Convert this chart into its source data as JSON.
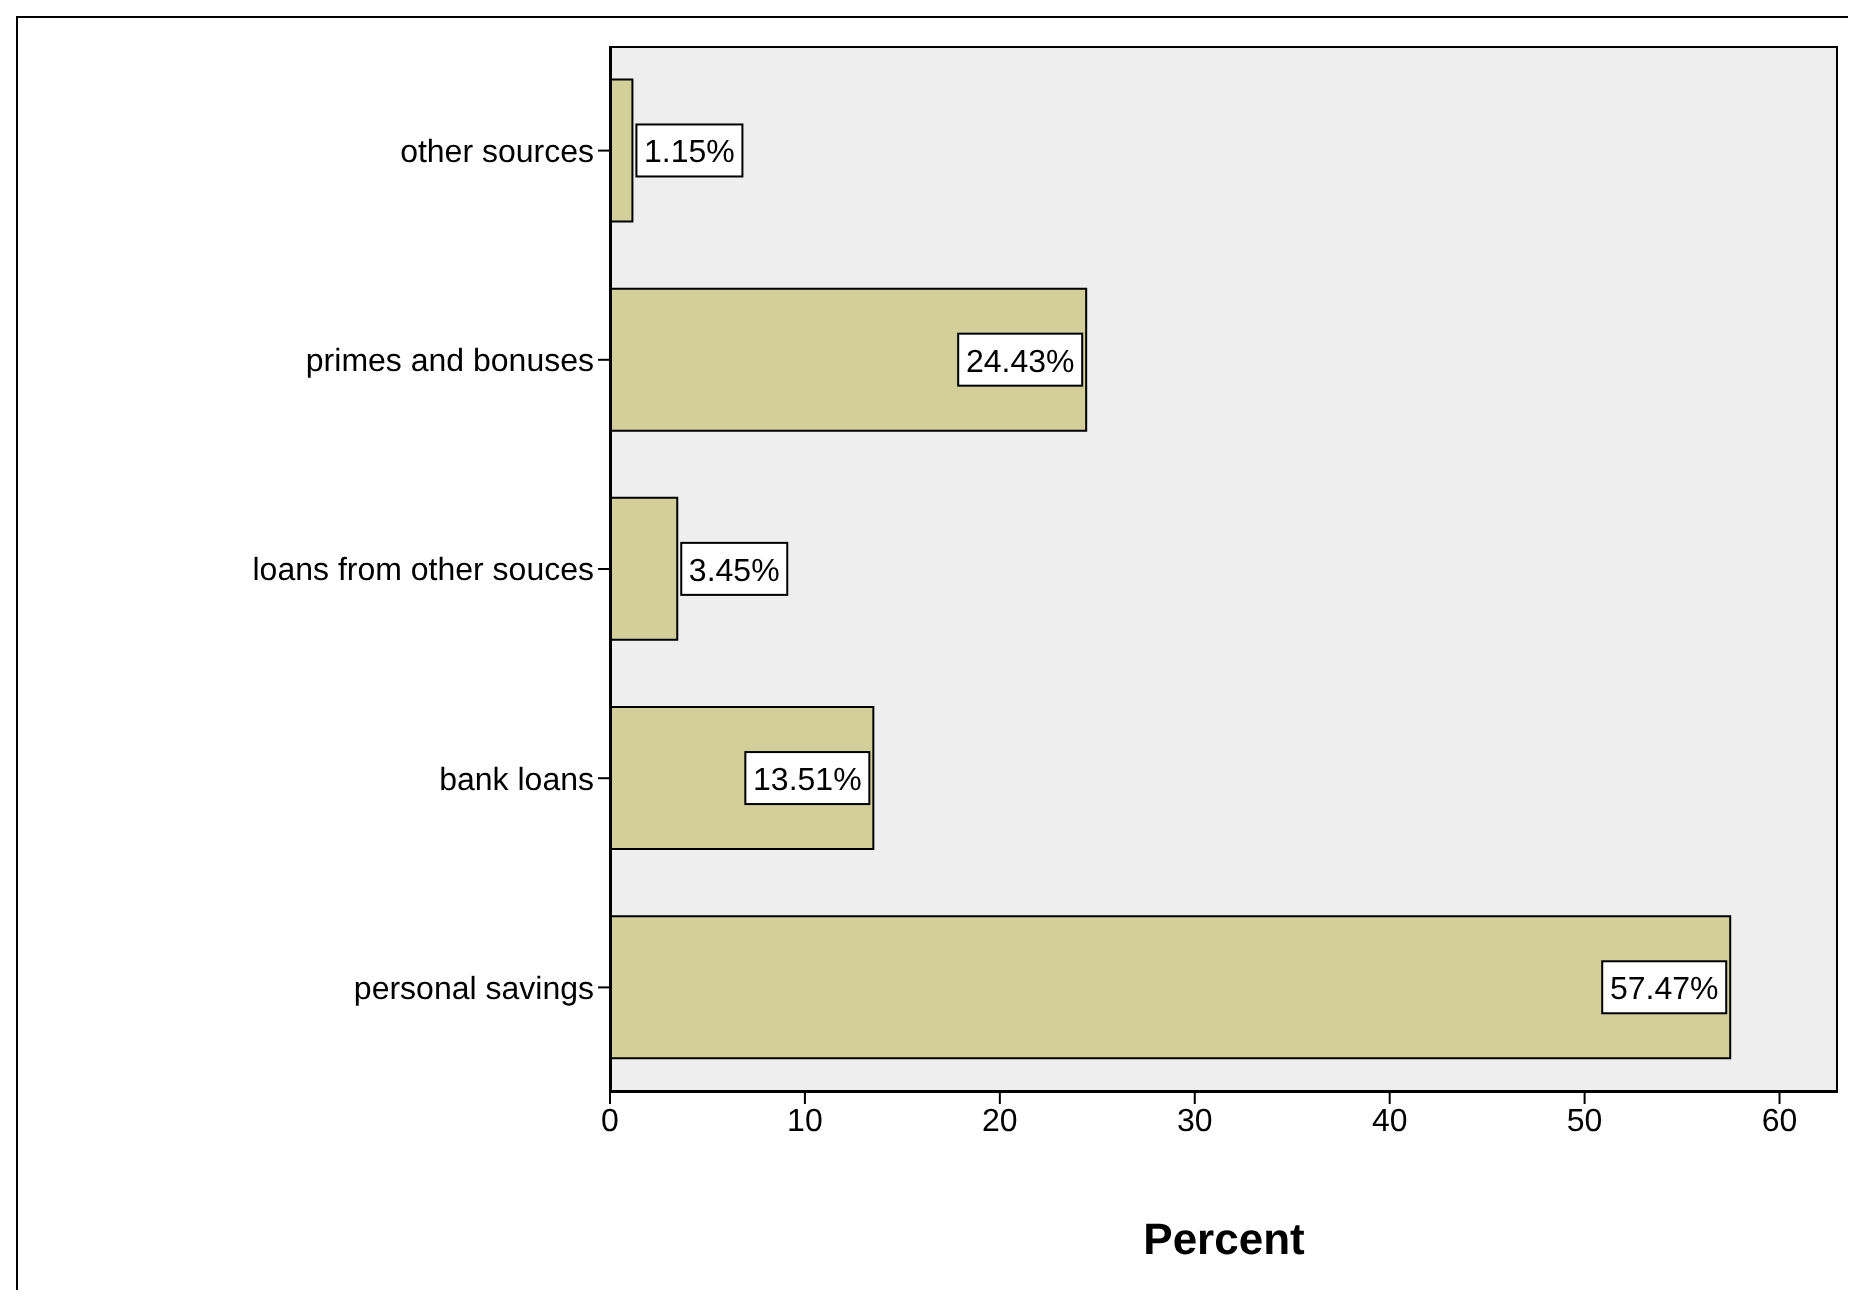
{
  "chart_data": {
    "type": "bar",
    "orientation": "horizontal",
    "xlabel": "Percent",
    "categories": [
      "other sources",
      "primes and bonuses",
      "loans from other souces",
      "bank loans",
      "personal savings"
    ],
    "values": [
      1.15,
      24.43,
      3.45,
      13.51,
      57.47
    ],
    "value_labels": [
      "1.15%",
      "24.43%",
      "3.45%",
      "13.51%",
      "57.47%"
    ],
    "color": "#d3cf9b",
    "xlim": [
      0,
      63
    ],
    "xticks": [
      0,
      10,
      20,
      30,
      40,
      50,
      60
    ],
    "grid": false
  }
}
